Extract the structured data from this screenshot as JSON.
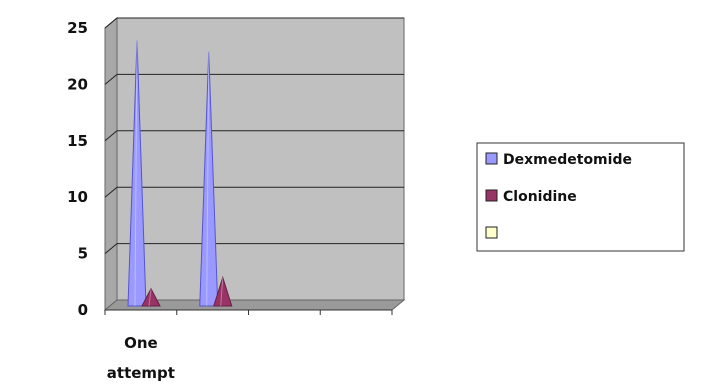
{
  "chart_data": {
    "type": "area",
    "style": "3d-cone-spikes",
    "categories": [
      "One attempt",
      "",
      "",
      ""
    ],
    "ylim": [
      0,
      25
    ],
    "yticks": [
      0,
      5,
      10,
      15,
      20,
      25
    ],
    "grid": true,
    "legend_position": "right",
    "plot_background": "#c0c0c0",
    "series": [
      {
        "name": "Dexmedetomide",
        "values": [
          23,
          22,
          0,
          0
        ],
        "color": "#9999ff",
        "edge": "#5555cc"
      },
      {
        "name": "Clonidine",
        "values": [
          1,
          2,
          0,
          0
        ],
        "color": "#993366",
        "edge": "#661f44"
      },
      {
        "name": "",
        "values": [
          0,
          0,
          0,
          0
        ],
        "color": "#ffffcc",
        "edge": "#888866"
      }
    ]
  }
}
